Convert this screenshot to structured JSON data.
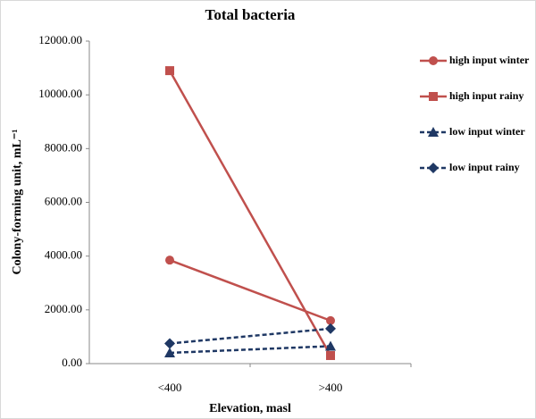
{
  "chart_data": {
    "type": "line",
    "title": "Total bacteria",
    "x_label": "Elevation, masl",
    "y_label": "Colony-forming unit, mL⁻¹",
    "categories": [
      "<400",
      ">400"
    ],
    "series": [
      {
        "name": "high input winter",
        "color": "#c0504d",
        "marker": "circle",
        "dashed": false,
        "values": [
          3850,
          1600
        ]
      },
      {
        "name": "high input rainy",
        "color": "#c0504d",
        "marker": "square",
        "dashed": false,
        "values": [
          10900,
          300
        ]
      },
      {
        "name": "low input winter",
        "color": "#1f3864",
        "marker": "triangle",
        "dashed": true,
        "values": [
          400,
          650
        ]
      },
      {
        "name": "low input rainy",
        "color": "#1f3864",
        "marker": "diamond",
        "dashed": true,
        "values": [
          750,
          1300
        ]
      }
    ],
    "ylim": [
      0,
      12000
    ],
    "yticks": [
      {
        "value": 0,
        "label": "0.00"
      },
      {
        "value": 2000,
        "label": "2000.00"
      },
      {
        "value": 4000,
        "label": "4000.00"
      },
      {
        "value": 6000,
        "label": "6000.00"
      },
      {
        "value": 8000,
        "label": "8000.00"
      },
      {
        "value": 10000,
        "label": "10000.00"
      },
      {
        "value": 12000,
        "label": "12000.00"
      }
    ],
    "legend": "right"
  }
}
